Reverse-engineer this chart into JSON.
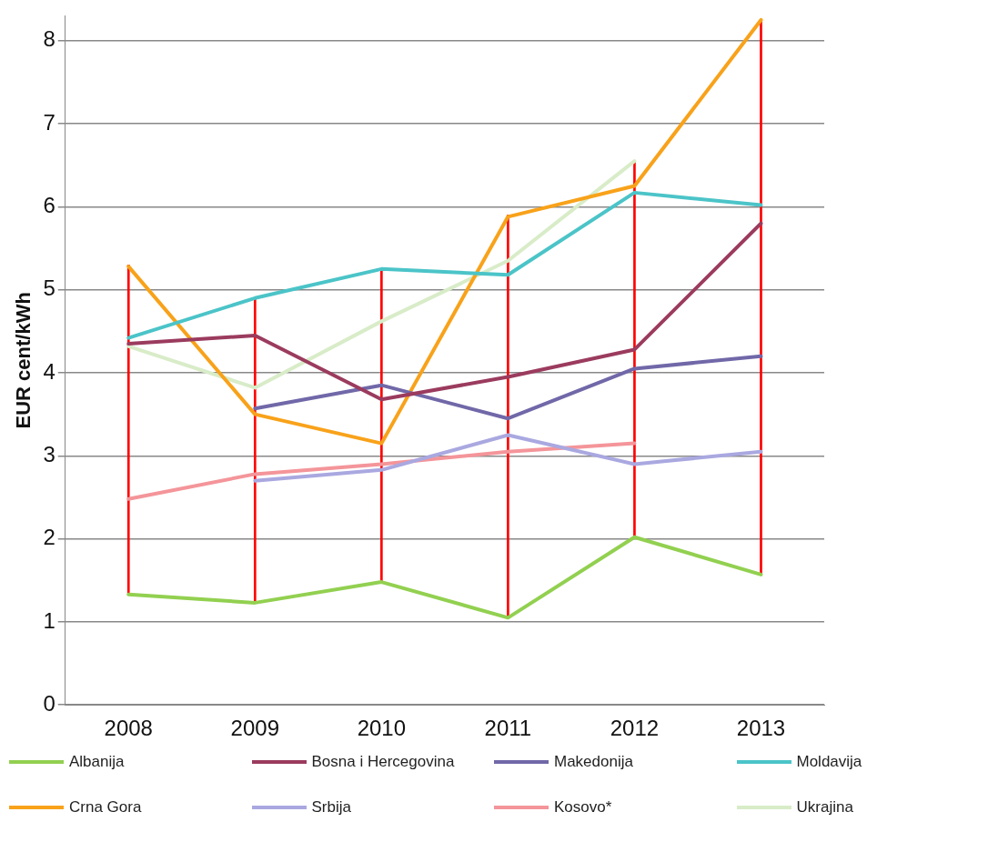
{
  "chart_data": {
    "type": "line",
    "ylabel": "EUR cent/kWh",
    "categories": [
      "2008",
      "2009",
      "2010",
      "2011",
      "2012",
      "2013"
    ],
    "ylim": [
      0,
      8.3
    ],
    "yticks": [
      0,
      1,
      2,
      3,
      4,
      5,
      6,
      7,
      8
    ],
    "grid": "y",
    "legend": "bottom",
    "marker": "none",
    "series": [
      {
        "name": "Albanija",
        "color": "#92d050",
        "values": [
          1.33,
          1.23,
          1.48,
          1.05,
          2.02,
          1.57
        ]
      },
      {
        "name": "Bosna i Hercegovina",
        "color": "#9b3b5e",
        "values": [
          4.35,
          4.45,
          3.68,
          3.95,
          4.28,
          5.8
        ]
      },
      {
        "name": "Makedonija",
        "color": "#7068a8",
        "values": [
          null,
          3.57,
          3.85,
          3.45,
          4.05,
          4.2
        ]
      },
      {
        "name": "Moldavija",
        "color": "#4bc4c8",
        "values": [
          4.42,
          4.9,
          5.25,
          5.18,
          6.17,
          6.02
        ]
      },
      {
        "name": "Crna Gora",
        "color": "#f8a21a",
        "values": [
          5.28,
          3.5,
          3.15,
          5.88,
          6.25,
          8.25
        ]
      },
      {
        "name": "Srbija",
        "color": "#aaa8e0",
        "values": [
          null,
          2.7,
          2.83,
          3.25,
          2.9,
          3.05
        ]
      },
      {
        "name": "Kosovo*",
        "color": "#f4959a",
        "values": [
          2.48,
          2.78,
          2.9,
          3.05,
          3.15,
          null
        ]
      },
      {
        "name": "Ukrajina",
        "color": "#d8ecc8",
        "values": [
          4.32,
          3.82,
          4.62,
          5.35,
          6.55,
          null
        ]
      },
      {
        "type": "bar",
        "color": "#ff0000",
        "base": [
          1.33,
          1.23,
          1.48,
          1.05,
          2.02,
          1.57
        ],
        "values": [
          3.97,
          3.67,
          3.77,
          4.85,
          4.53,
          6.68
        ]
      }
    ]
  }
}
